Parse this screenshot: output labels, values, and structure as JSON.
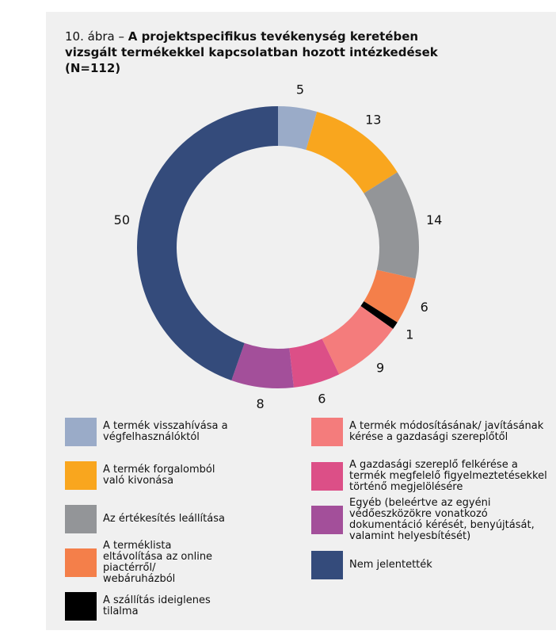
{
  "chart_data": {
    "type": "donut",
    "title": {
      "number": "10. ábra – ",
      "text": "A projektspecifikus tevékenység keretében vizsgált termékekkel kapcsolatban hozott intézkedések (N=112)"
    },
    "categories": [
      "A termék visszahívása a végfelhasználóktól",
      "A termék forgalomból való kivonása",
      "Az értékesítés leállítása",
      "A terméklista eltávolítása az online piactérről/ webáruházból",
      "A szállítás ideiglenes tilalma",
      "A termék módosításának/ javításának kérése a gazdasági szereplőtől",
      "A gazdasági szereplő felkérése a termék megfelelő figyelmeztetésekkel történő megjelölésére",
      "Egyéb (beleértve az egyéni védőeszközökre vonatkozó dokumentáció kérését, benyújtását, valamint helyesbítését)",
      "Nem jelentették"
    ],
    "values": [
      5,
      13,
      14,
      6,
      1,
      9,
      6,
      8,
      50
    ],
    "colors": [
      "#9aabc8",
      "#f9a61e",
      "#939598",
      "#f47f4a",
      "#000000",
      "#f47c7c",
      "#dc4f87",
      "#a34f9a",
      "#344b7b"
    ]
  }
}
